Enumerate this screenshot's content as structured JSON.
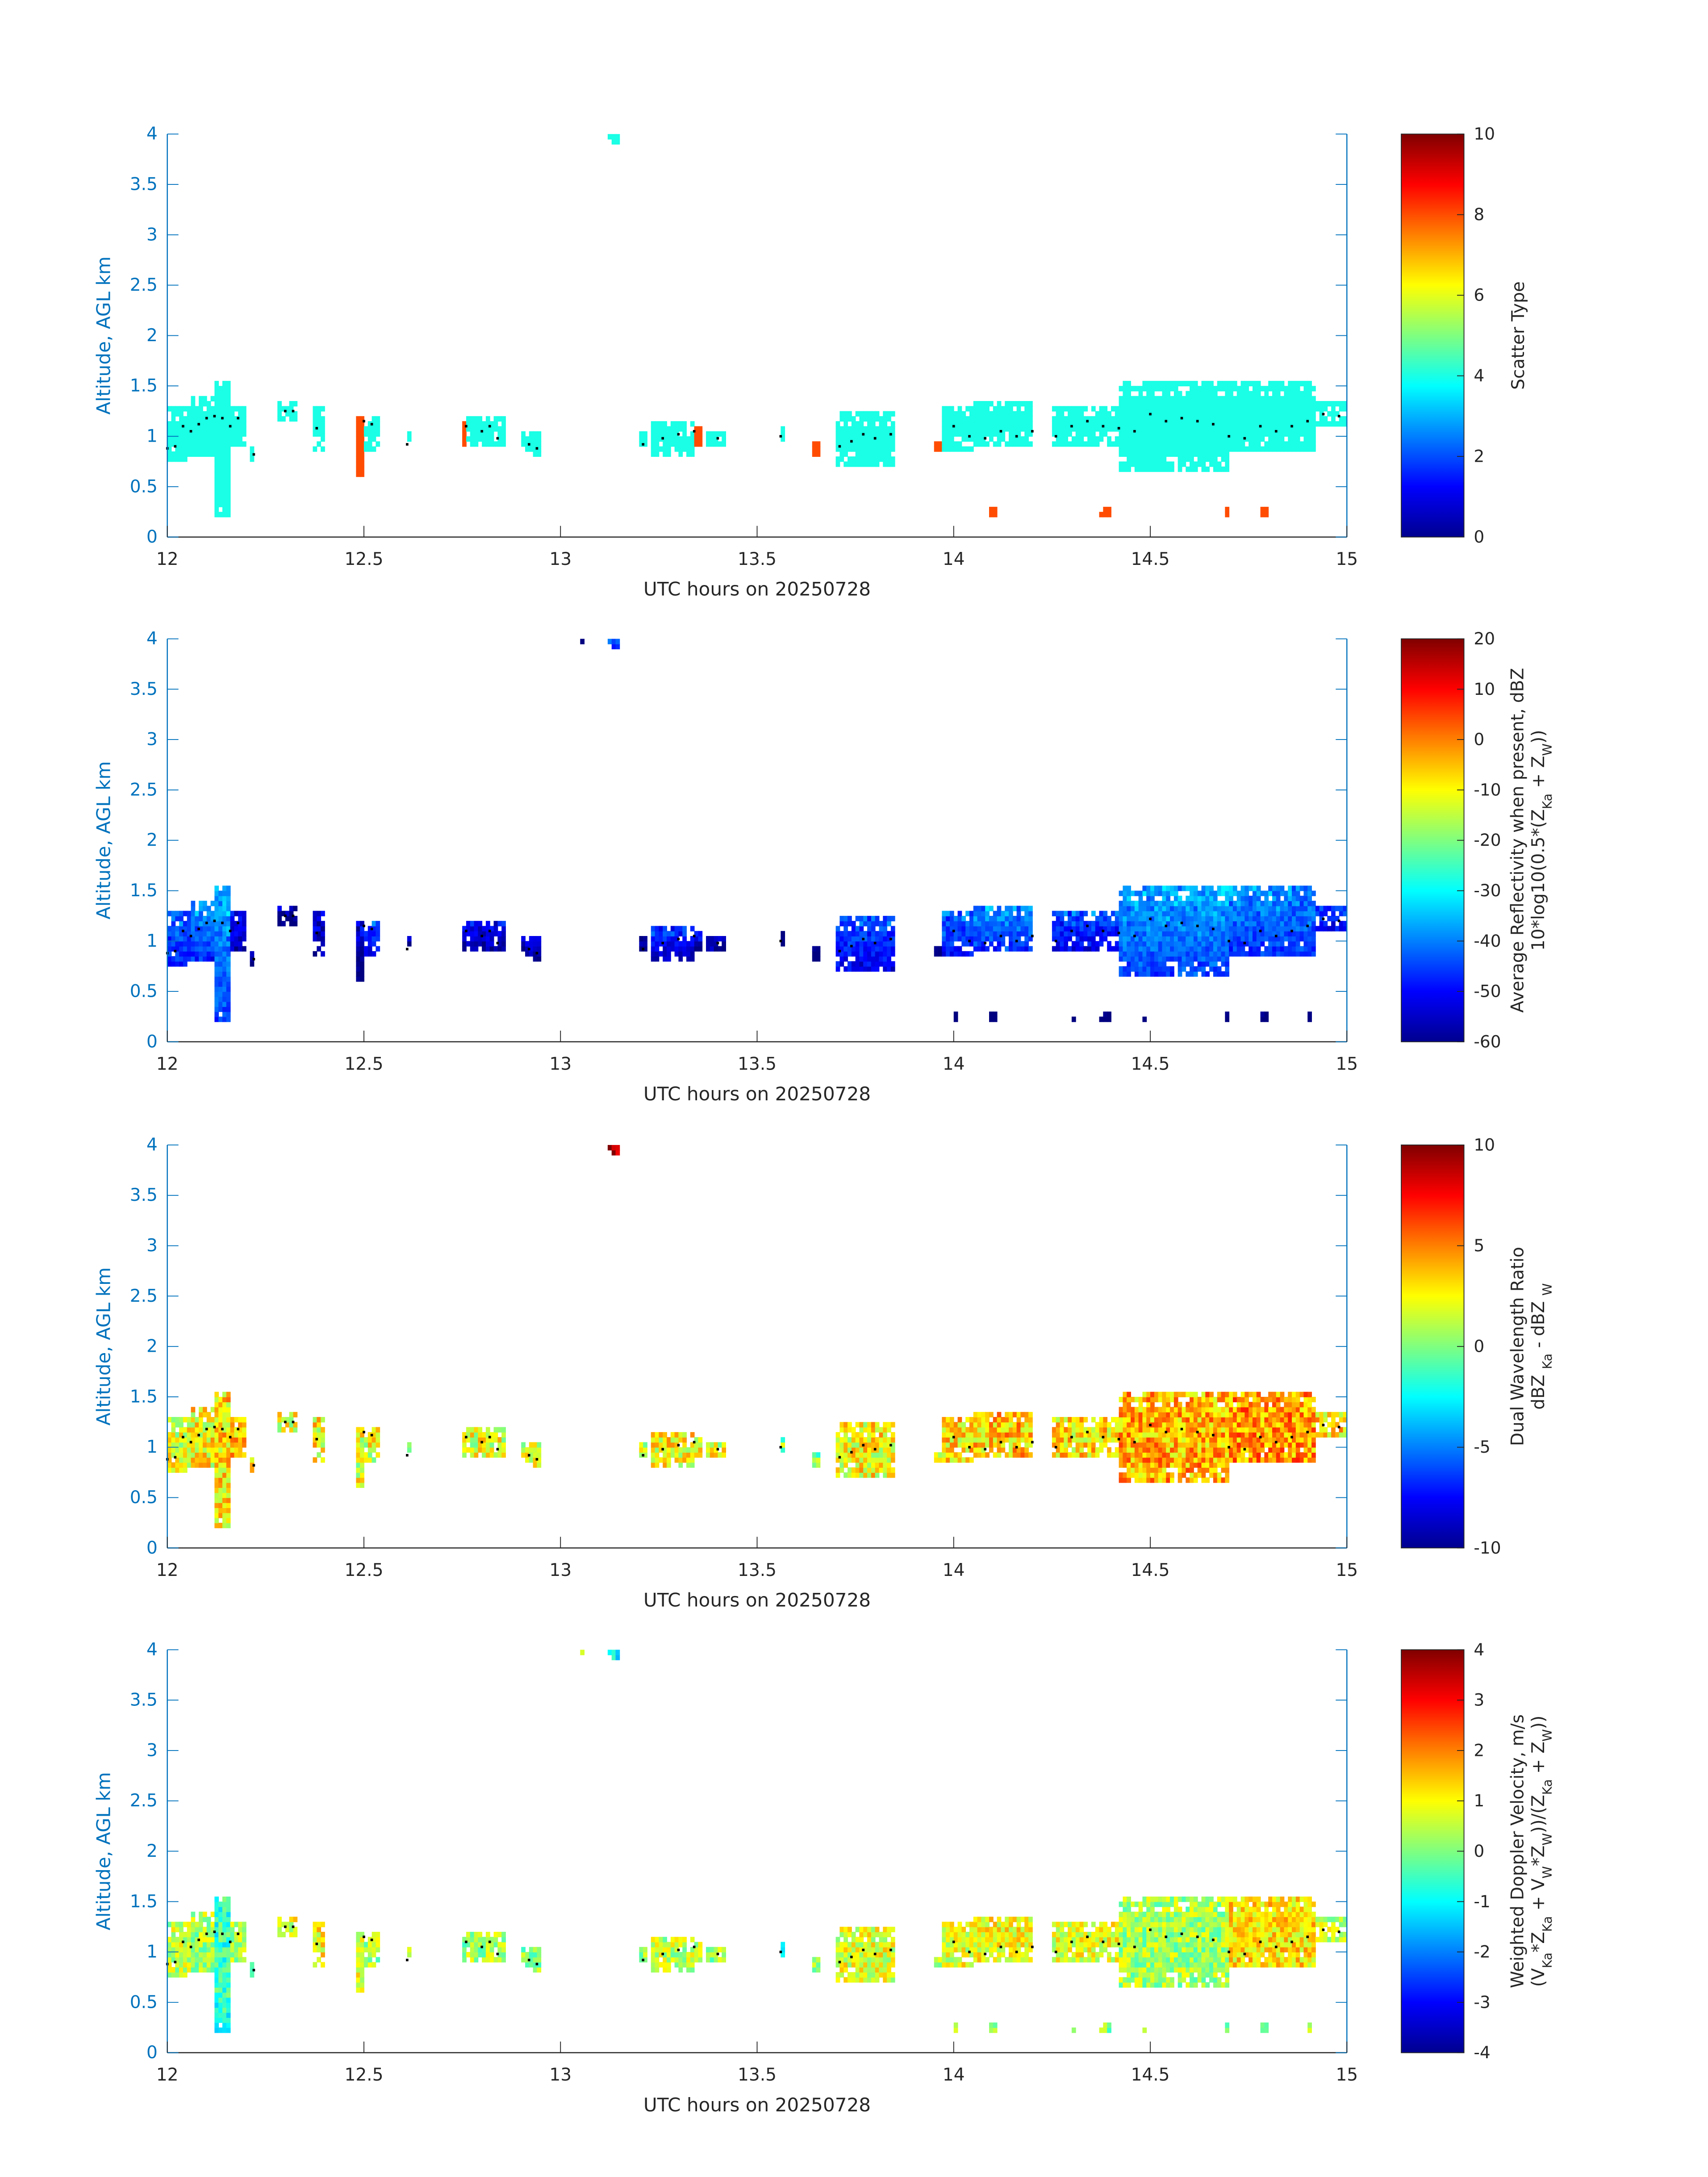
{
  "chart_data": {
    "type": "heatmap",
    "grid": false,
    "xlim": [
      12,
      15
    ],
    "ylim": [
      0,
      4
    ],
    "x_ticks": [
      12,
      12.5,
      13,
      13.5,
      14,
      14.5,
      15
    ],
    "x_tick_labels": [
      "12",
      "12.5",
      "13",
      "13.5",
      "14",
      "14.5",
      "15"
    ],
    "y_ticks": [
      0,
      0.5,
      1,
      1.5,
      2,
      2.5,
      3,
      3.5,
      4
    ],
    "y_tick_labels": [
      "0",
      "0.5",
      "1",
      "1.5",
      "2",
      "2.5",
      "3",
      "3.5",
      "4"
    ],
    "xlabel": "UTC hours on 20250728",
    "ylabel": "Altitude, AGL km",
    "bin_size": {
      "time_h": 0.01,
      "alt_km": 0.05
    },
    "cloud_columns": [
      {
        "t": [
          12.0,
          12.06
        ],
        "z": [
          0.75,
          1.3
        ],
        "scatter": 4,
        "dbz": -42,
        "dwr": 2,
        "vel": 0.5
      },
      {
        "t": [
          12.06,
          12.12
        ],
        "z": [
          0.8,
          1.4
        ],
        "scatter": 4,
        "dbz": -40,
        "dwr": 2.5,
        "vel": 0.3
      },
      {
        "t": [
          12.12,
          12.16
        ],
        "z": [
          0.2,
          1.55
        ],
        "scatter": 4,
        "dbz": -38,
        "dwr": 3,
        "vel": -0.6
      },
      {
        "t": [
          12.16,
          12.2
        ],
        "z": [
          0.9,
          1.3
        ],
        "scatter": 4,
        "dbz": -50,
        "dwr": 3.5,
        "vel": 0.4
      },
      {
        "t": [
          12.21,
          12.22
        ],
        "z": [
          0.75,
          0.9
        ],
        "scatter": 4,
        "dbz": -55,
        "dwr": 2,
        "vel": -0.5
      },
      {
        "t": [
          12.28,
          12.33
        ],
        "z": [
          1.15,
          1.35
        ],
        "scatter": 4,
        "dbz": -56,
        "dwr": 2,
        "vel": 0.8
      },
      {
        "t": [
          12.37,
          12.4
        ],
        "z": [
          0.85,
          1.3
        ],
        "scatter": 4,
        "dbz": -52,
        "dwr": 2.5,
        "vel": 1
      },
      {
        "t": [
          12.48,
          12.5
        ],
        "z": [
          0.6,
          1.2
        ],
        "scatter": 8,
        "dbz": -55,
        "dwr": 2,
        "vel": 0.8
      },
      {
        "t": [
          12.5,
          12.54
        ],
        "z": [
          0.85,
          1.2
        ],
        "scatter": 4,
        "dbz": -45,
        "dwr": 2,
        "vel": 0.3
      },
      {
        "t": [
          12.61,
          12.62
        ],
        "z": [
          0.95,
          1.05
        ],
        "scatter": 4,
        "dbz": -55,
        "dwr": 1,
        "vel": 0.2
      },
      {
        "t": [
          12.75,
          12.76
        ],
        "z": [
          0.9,
          1.15
        ],
        "scatter": 8,
        "dbz": -52,
        "dwr": 1,
        "vel": 0
      },
      {
        "t": [
          12.76,
          12.86
        ],
        "z": [
          0.9,
          1.2
        ],
        "scatter": 4,
        "dbz": -50,
        "dwr": 2,
        "vel": 0.3
      },
      {
        "t": [
          12.9,
          12.95
        ],
        "z": [
          0.8,
          1.05
        ],
        "scatter": 4,
        "dbz": -52,
        "dwr": 1.5,
        "vel": 0.2
      },
      {
        "t": [
          13.2,
          13.22
        ],
        "z": [
          0.9,
          1.05
        ],
        "scatter": 4,
        "dbz": -56,
        "dwr": 1,
        "vel": 0.1
      },
      {
        "t": [
          13.23,
          13.34
        ],
        "z": [
          0.8,
          1.15
        ],
        "scatter": 4,
        "dbz": -48,
        "dwr": 2.5,
        "vel": 0.5
      },
      {
        "t": [
          13.34,
          13.36
        ],
        "z": [
          0.9,
          1.1
        ],
        "scatter": 8,
        "dbz": -50,
        "dwr": 2,
        "vel": 0.4
      },
      {
        "t": [
          13.37,
          13.42
        ],
        "z": [
          0.9,
          1.05
        ],
        "scatter": 4,
        "dbz": -52,
        "dwr": 2,
        "vel": 0.2
      },
      {
        "t": [
          13.56,
          13.57
        ],
        "z": [
          0.95,
          1.1
        ],
        "scatter": 4,
        "dbz": -55,
        "dwr": 0,
        "vel": -1.5
      },
      {
        "t": [
          13.64,
          13.66
        ],
        "z": [
          0.8,
          0.95
        ],
        "scatter": 8,
        "dbz": -58,
        "dwr": 0,
        "vel": 0
      },
      {
        "t": [
          13.7,
          13.85
        ],
        "z": [
          0.7,
          1.25
        ],
        "scatter": 4,
        "dbz": -45,
        "dwr": 2.5,
        "vel": 0.8
      },
      {
        "t": [
          13.95,
          13.97
        ],
        "z": [
          0.85,
          0.95
        ],
        "scatter": 8,
        "dbz": -55,
        "dwr": 2,
        "vel": 0.5
      },
      {
        "t": [
          13.97,
          14.05
        ],
        "z": [
          0.85,
          1.3
        ],
        "scatter": 4,
        "dbz": -42,
        "dwr": 3,
        "vel": 0.8
      },
      {
        "t": [
          14.05,
          14.2
        ],
        "z": [
          0.9,
          1.35
        ],
        "scatter": 4,
        "dbz": -40,
        "dwr": 3.5,
        "vel": 1
      },
      {
        "t": [
          14.25,
          14.42
        ],
        "z": [
          0.9,
          1.3
        ],
        "scatter": 4,
        "dbz": -45,
        "dwr": 3,
        "vel": 0.8
      },
      {
        "t": [
          14.42,
          14.7
        ],
        "z": [
          0.65,
          1.55
        ],
        "scatter": 4,
        "dbz": -38,
        "dwr": 4,
        "vel": 0.3
      },
      {
        "t": [
          14.7,
          14.92
        ],
        "z": [
          0.85,
          1.55
        ],
        "scatter": 4,
        "dbz": -40,
        "dwr": 4.5,
        "vel": 1.2
      },
      {
        "t": [
          14.92,
          15.0
        ],
        "z": [
          1.1,
          1.35
        ],
        "scatter": 4,
        "dbz": -45,
        "dwr": 3,
        "vel": 0.6
      },
      {
        "t": [
          14.09,
          14.11
        ],
        "z": [
          0.2,
          0.3
        ],
        "scatter": 8,
        "dbz": -58,
        "dwr": null,
        "vel": 0
      },
      {
        "t": [
          14.37,
          14.4
        ],
        "z": [
          0.2,
          0.3
        ],
        "scatter": 8,
        "dbz": -58,
        "dwr": null,
        "vel": 0
      },
      {
        "t": [
          14.69,
          14.7
        ],
        "z": [
          0.2,
          0.3
        ],
        "scatter": 8,
        "dbz": -58,
        "dwr": null,
        "vel": 0
      },
      {
        "t": [
          14.78,
          14.8
        ],
        "z": [
          0.2,
          0.3
        ],
        "scatter": 8,
        "dbz": -58,
        "dwr": null,
        "vel": 0
      },
      {
        "t": [
          14.0,
          14.01
        ],
        "z": [
          0.2,
          0.3
        ],
        "scatter": null,
        "dbz": -58,
        "dwr": null,
        "vel": 0
      },
      {
        "t": [
          14.3,
          14.31
        ],
        "z": [
          0.2,
          0.25
        ],
        "scatter": null,
        "dbz": -58,
        "dwr": null,
        "vel": 0
      },
      {
        "t": [
          14.48,
          14.49
        ],
        "z": [
          0.2,
          0.25
        ],
        "scatter": null,
        "dbz": -58,
        "dwr": null,
        "vel": 0
      },
      {
        "t": [
          14.9,
          14.91
        ],
        "z": [
          0.2,
          0.3
        ],
        "scatter": null,
        "dbz": -58,
        "dwr": null,
        "vel": 0
      },
      {
        "t": [
          13.05,
          13.06
        ],
        "z": [
          3.95,
          4.0
        ],
        "scatter": null,
        "dbz": -55,
        "dwr": null,
        "vel": 0
      },
      {
        "t": [
          13.12,
          13.15
        ],
        "z": [
          3.9,
          4.0
        ],
        "scatter": 4,
        "dbz": -42,
        "dwr": 9,
        "vel": -1
      }
    ],
    "cloud_base_dots": [
      [
        12.0,
        0.88
      ],
      [
        12.02,
        0.9
      ],
      [
        12.04,
        1.1
      ],
      [
        12.06,
        1.05
      ],
      [
        12.08,
        1.12
      ],
      [
        12.1,
        1.18
      ],
      [
        12.12,
        1.2
      ],
      [
        12.14,
        1.18
      ],
      [
        12.16,
        1.1
      ],
      [
        12.18,
        1.18
      ],
      [
        12.22,
        0.82
      ],
      [
        12.3,
        1.25
      ],
      [
        12.32,
        1.25
      ],
      [
        12.38,
        1.08
      ],
      [
        12.5,
        1.15
      ],
      [
        12.52,
        1.12
      ],
      [
        12.61,
        0.92
      ],
      [
        12.76,
        1.1
      ],
      [
        12.8,
        1.05
      ],
      [
        12.82,
        1.1
      ],
      [
        12.84,
        0.98
      ],
      [
        12.92,
        0.92
      ],
      [
        12.94,
        0.88
      ],
      [
        13.21,
        0.92
      ],
      [
        13.26,
        0.98
      ],
      [
        13.3,
        1.02
      ],
      [
        13.34,
        1.05
      ],
      [
        13.4,
        0.98
      ],
      [
        13.56,
        1.0
      ],
      [
        13.71,
        0.9
      ],
      [
        13.74,
        0.95
      ],
      [
        13.77,
        1.02
      ],
      [
        13.8,
        0.98
      ],
      [
        13.84,
        1.02
      ],
      [
        14.0,
        1.1
      ],
      [
        14.04,
        1.0
      ],
      [
        14.08,
        0.98
      ],
      [
        14.12,
        1.05
      ],
      [
        14.16,
        1.0
      ],
      [
        14.2,
        1.05
      ],
      [
        14.26,
        1.0
      ],
      [
        14.3,
        1.1
      ],
      [
        14.34,
        1.15
      ],
      [
        14.38,
        1.1
      ],
      [
        14.42,
        1.08
      ],
      [
        14.46,
        1.05
      ],
      [
        14.5,
        1.22
      ],
      [
        14.54,
        1.15
      ],
      [
        14.58,
        1.18
      ],
      [
        14.62,
        1.15
      ],
      [
        14.66,
        1.12
      ],
      [
        14.7,
        1.0
      ],
      [
        14.74,
        0.98
      ],
      [
        14.78,
        1.1
      ],
      [
        14.82,
        1.05
      ],
      [
        14.86,
        1.1
      ],
      [
        14.9,
        1.15
      ],
      [
        14.94,
        1.22
      ],
      [
        14.98,
        1.2
      ]
    ],
    "panels": [
      {
        "field": "scatter",
        "clim": [
          0,
          10
        ],
        "cbar_ticks": [
          "0",
          "2",
          "4",
          "6",
          "8",
          "10"
        ],
        "cbar_tick_values": [
          0,
          2,
          4,
          6,
          8,
          10
        ],
        "cbar_label_lines": [
          [
            "Scatter Type"
          ]
        ]
      },
      {
        "field": "dbz",
        "clim": [
          -60,
          20
        ],
        "cbar_ticks": [
          "-60",
          "-50",
          "-40",
          "-30",
          "-20",
          "-10",
          "0",
          "10",
          "20"
        ],
        "cbar_tick_values": [
          -60,
          -50,
          -40,
          -30,
          -20,
          -10,
          0,
          10,
          20
        ],
        "cbar_label_lines": [
          [
            "Average Reflectivity when present, dBZ"
          ],
          [
            "10*log10(0.5*(Z",
            "Ka",
            " + Z",
            "W",
            "))"
          ]
        ]
      },
      {
        "field": "dwr",
        "clim": [
          -10,
          10
        ],
        "cbar_ticks": [
          "-10",
          "-5",
          "0",
          "5",
          "10"
        ],
        "cbar_tick_values": [
          -10,
          -5,
          0,
          5,
          10
        ],
        "cbar_label_lines": [
          [
            "Dual Wavelength Ratio"
          ],
          [
            "dBZ ",
            "Ka",
            " - dBZ ",
            "W"
          ]
        ]
      },
      {
        "field": "vel",
        "clim": [
          -4,
          4
        ],
        "cbar_ticks": [
          "-4",
          "-3",
          "-2",
          "-1",
          "0",
          "1",
          "2",
          "3",
          "4"
        ],
        "cbar_tick_values": [
          -4,
          -3,
          -2,
          -1,
          0,
          1,
          2,
          3,
          4
        ],
        "cbar_label_lines": [
          [
            "Weighted Doppler Velocity, m/s"
          ],
          [
            "(V",
            "Ka",
            "*Z",
            "Ka",
            " + V",
            "W",
            "*Z",
            "W",
            "))/(Z",
            "Ka",
            " + Z",
            "W",
            "))"
          ]
        ]
      }
    ],
    "colors": {
      "axis": "#0072bd",
      "text": "#262626"
    }
  }
}
